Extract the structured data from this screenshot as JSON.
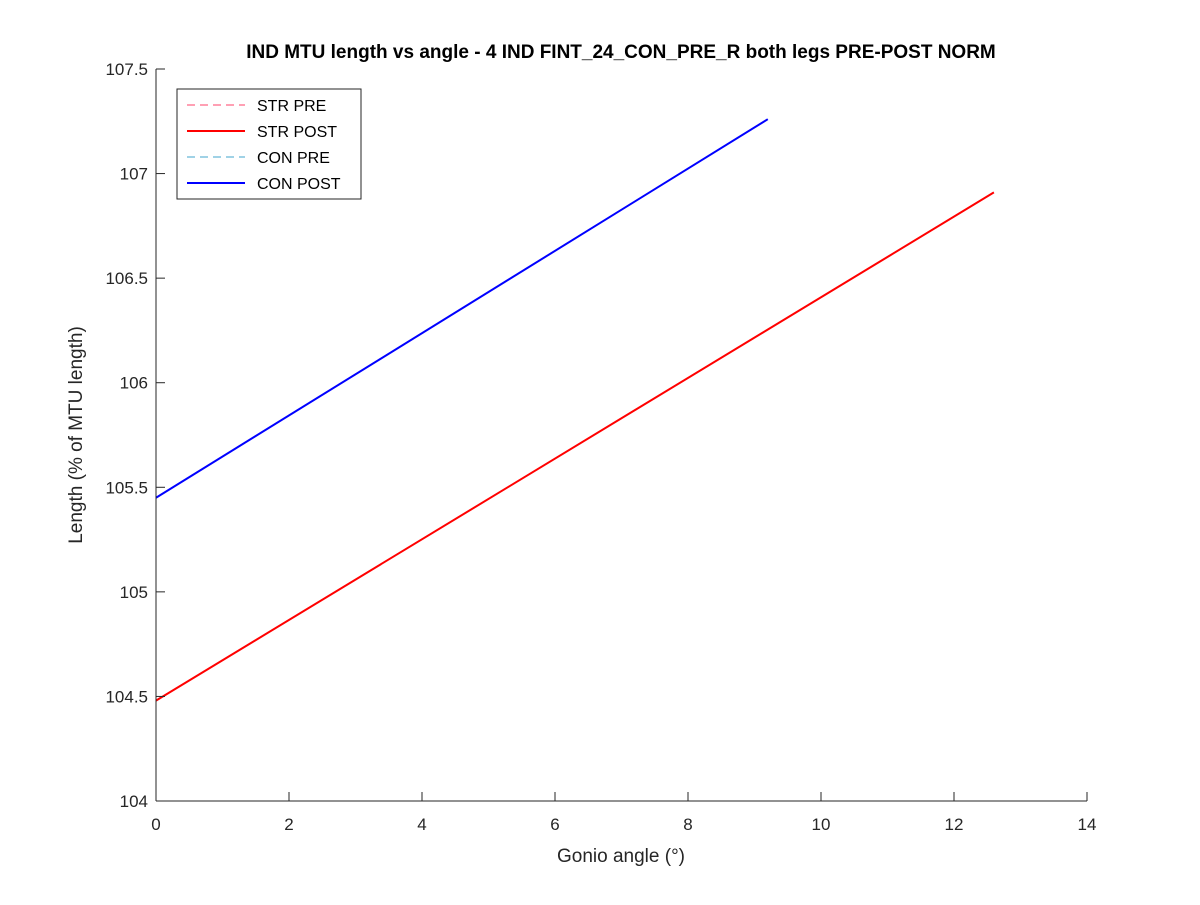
{
  "chart_data": {
    "type": "line",
    "title": "IND MTU length vs angle - 4 IND FINT_24_CON_PRE_R both legs PRE-POST NORM",
    "xlabel": "Gonio angle (°)",
    "ylabel": "Length (% of MTU length)",
    "xlim": [
      0,
      14
    ],
    "ylim": [
      104,
      107.5
    ],
    "xticks": [
      0,
      2,
      4,
      6,
      8,
      10,
      12,
      14
    ],
    "yticks": [
      104,
      104.5,
      105,
      105.5,
      106,
      106.5,
      107,
      107.5
    ],
    "xtick_labels": [
      "0",
      "2",
      "4",
      "6",
      "8",
      "10",
      "12",
      "14"
    ],
    "ytick_labels": [
      "104",
      "104.5",
      "105",
      "105.5",
      "106",
      "106.5",
      "107",
      "107.5"
    ],
    "grid": false,
    "legend_position": "top-left",
    "series": [
      {
        "name": "STR PRE",
        "color": "#ffa0b4",
        "dash": true,
        "x": [],
        "y": []
      },
      {
        "name": "STR POST",
        "color": "#ff0000",
        "dash": false,
        "x": [
          0,
          12.6
        ],
        "y": [
          104.48,
          106.91
        ]
      },
      {
        "name": "CON PRE",
        "color": "#a0d2e6",
        "dash": true,
        "x": [],
        "y": []
      },
      {
        "name": "CON POST",
        "color": "#0000ff",
        "dash": false,
        "x": [
          0,
          9.2
        ],
        "y": [
          105.45,
          107.26
        ]
      }
    ]
  }
}
